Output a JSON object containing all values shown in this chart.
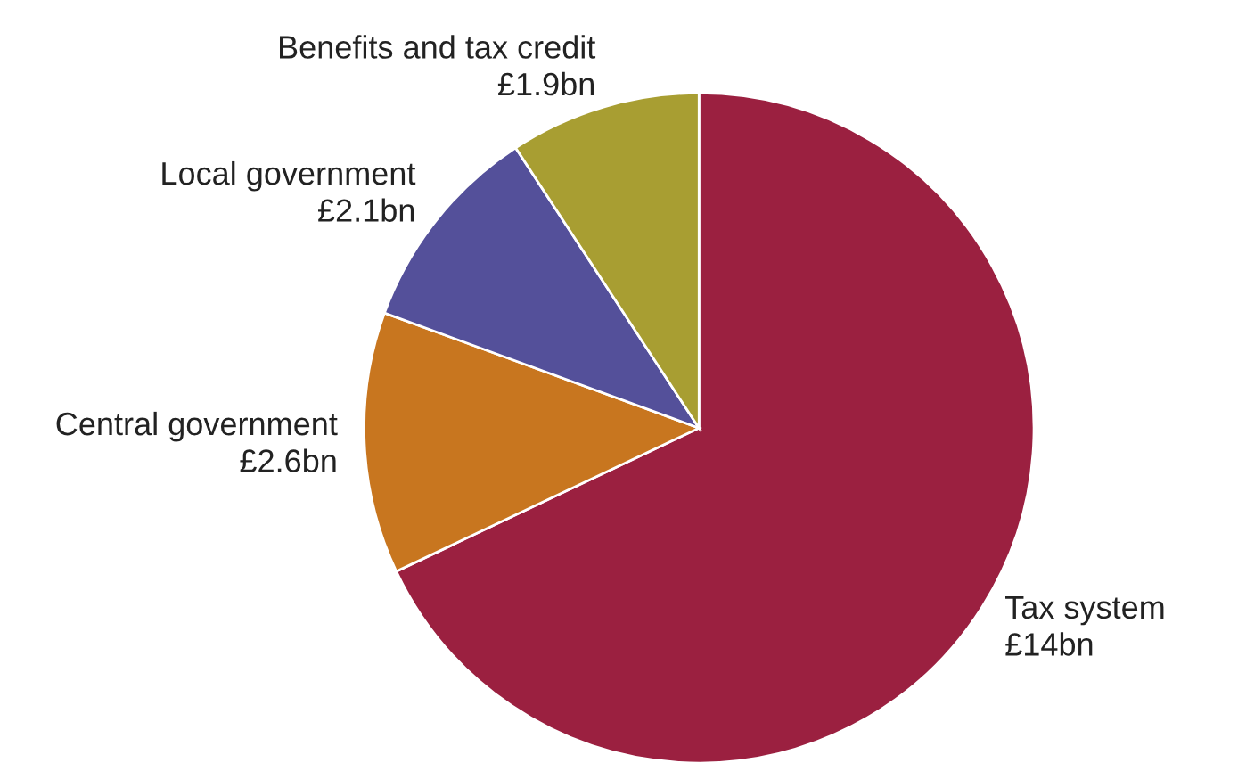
{
  "chart_data": {
    "type": "pie",
    "categories": [
      "Tax system",
      "Central government",
      "Local government",
      "Benefits and tax credit"
    ],
    "values": [
      14,
      2.6,
      2.1,
      1.9
    ],
    "value_labels": [
      "£14bn",
      "£2.6bn",
      "£2.1bn",
      "£1.9bn"
    ],
    "colors": [
      "#9b2040",
      "#c8761f",
      "#54509a",
      "#a89e32"
    ]
  }
}
